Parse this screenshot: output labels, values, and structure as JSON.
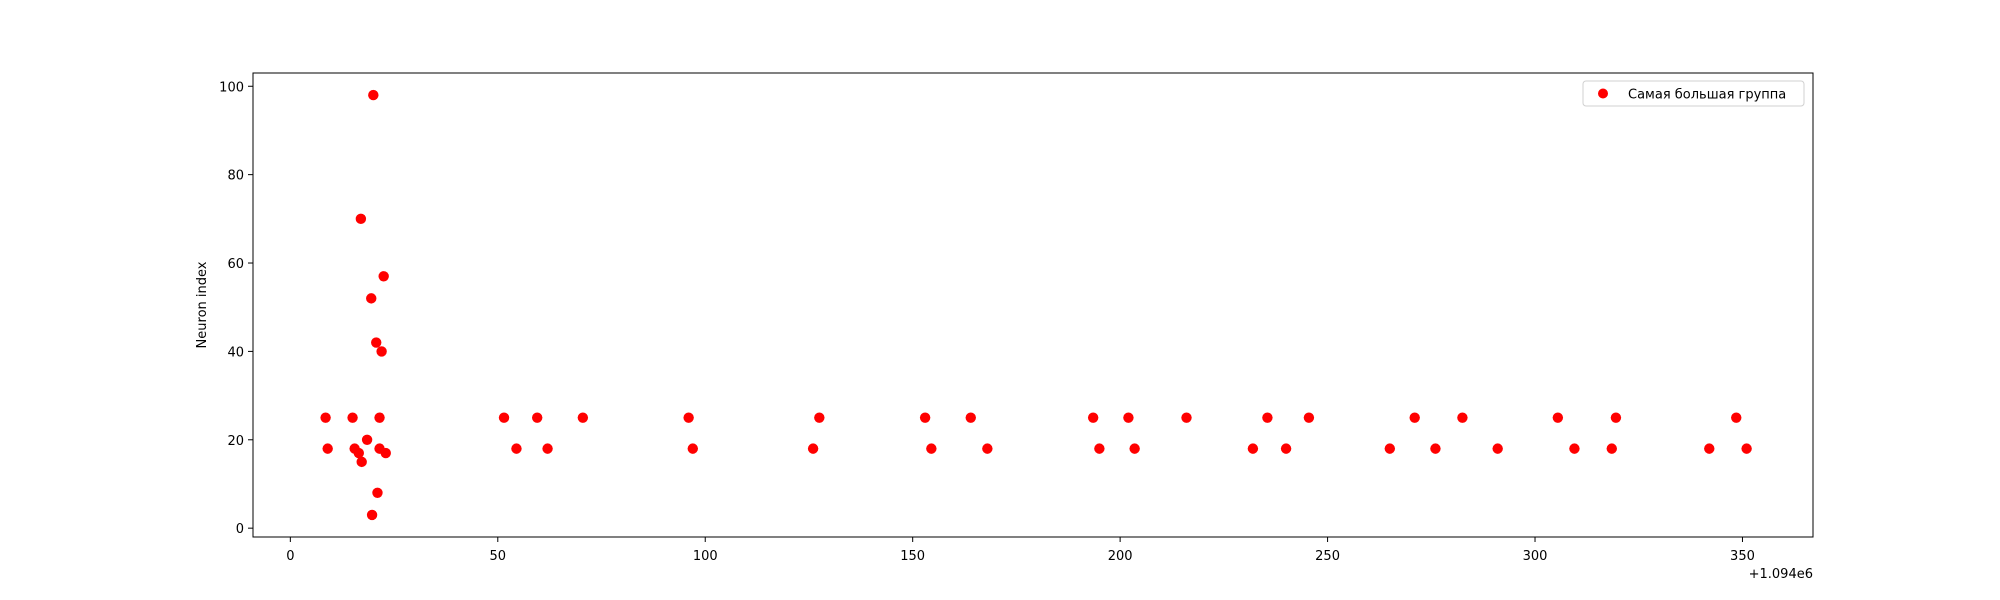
{
  "chart_data": {
    "type": "scatter",
    "title": "",
    "xlabel": "",
    "ylabel": "Neuron index",
    "x_offset_label": "+1.094e6",
    "xlim": [
      -9,
      367
    ],
    "ylim": [
      -2,
      103
    ],
    "x_ticks": [
      0,
      50,
      100,
      150,
      200,
      250,
      300,
      350
    ],
    "y_ticks": [
      0,
      20,
      40,
      60,
      80,
      100
    ],
    "grid": false,
    "legend_position": "top-right",
    "series": [
      {
        "name": "Самая большая группа",
        "color": "#ff0000",
        "points": [
          {
            "x": 8.5,
            "y": 25
          },
          {
            "x": 9,
            "y": 18
          },
          {
            "x": 15,
            "y": 25
          },
          {
            "x": 15.5,
            "y": 18
          },
          {
            "x": 16.5,
            "y": 17
          },
          {
            "x": 17,
            "y": 70
          },
          {
            "x": 17.2,
            "y": 15
          },
          {
            "x": 18.5,
            "y": 20
          },
          {
            "x": 19.5,
            "y": 52
          },
          {
            "x": 19.7,
            "y": 3
          },
          {
            "x": 20,
            "y": 98
          },
          {
            "x": 20.7,
            "y": 42
          },
          {
            "x": 21,
            "y": 8
          },
          {
            "x": 21.5,
            "y": 25
          },
          {
            "x": 21.5,
            "y": 18
          },
          {
            "x": 22,
            "y": 40
          },
          {
            "x": 22.5,
            "y": 57
          },
          {
            "x": 23,
            "y": 17
          },
          {
            "x": 51.5,
            "y": 25
          },
          {
            "x": 54.5,
            "y": 18
          },
          {
            "x": 59.5,
            "y": 25
          },
          {
            "x": 62,
            "y": 18
          },
          {
            "x": 70.5,
            "y": 25
          },
          {
            "x": 96,
            "y": 25
          },
          {
            "x": 97,
            "y": 18
          },
          {
            "x": 126,
            "y": 18
          },
          {
            "x": 127.5,
            "y": 25
          },
          {
            "x": 153,
            "y": 25
          },
          {
            "x": 154.5,
            "y": 18
          },
          {
            "x": 164,
            "y": 25
          },
          {
            "x": 168,
            "y": 18
          },
          {
            "x": 193.5,
            "y": 25
          },
          {
            "x": 195,
            "y": 18
          },
          {
            "x": 202,
            "y": 25
          },
          {
            "x": 203.5,
            "y": 18
          },
          {
            "x": 216,
            "y": 25
          },
          {
            "x": 232,
            "y": 18
          },
          {
            "x": 235.5,
            "y": 25
          },
          {
            "x": 240,
            "y": 18
          },
          {
            "x": 245.5,
            "y": 25
          },
          {
            "x": 265,
            "y": 18
          },
          {
            "x": 271,
            "y": 25
          },
          {
            "x": 276,
            "y": 18
          },
          {
            "x": 282.5,
            "y": 25
          },
          {
            "x": 291,
            "y": 18
          },
          {
            "x": 305.5,
            "y": 25
          },
          {
            "x": 309.5,
            "y": 18
          },
          {
            "x": 318.5,
            "y": 18
          },
          {
            "x": 319.5,
            "y": 25
          },
          {
            "x": 342,
            "y": 18
          },
          {
            "x": 348.5,
            "y": 25
          },
          {
            "x": 351,
            "y": 18
          }
        ]
      }
    ]
  }
}
